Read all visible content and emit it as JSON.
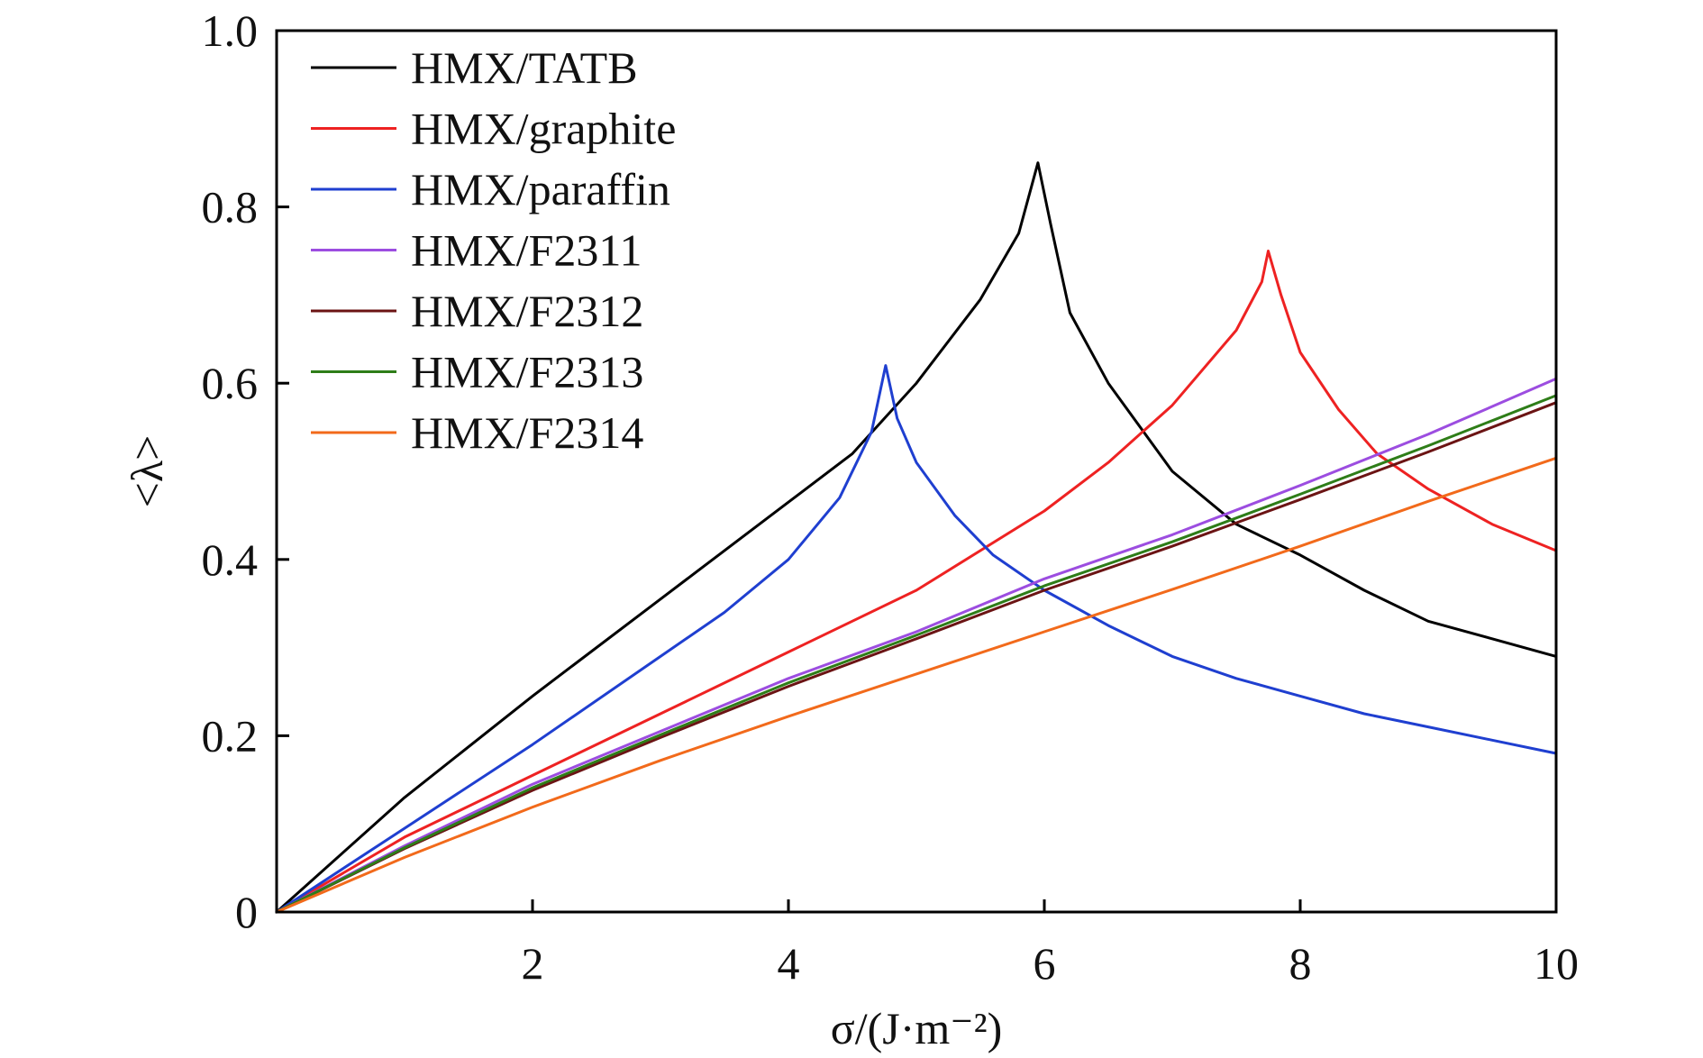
{
  "chart_data": {
    "type": "line",
    "xlabel": "σ/(J·m⁻²)",
    "ylabel": "<λ>",
    "xlim": [
      0,
      10
    ],
    "ylim": [
      0,
      1.0
    ],
    "xticks": [
      2,
      4,
      6,
      8,
      10
    ],
    "xtick_labels": [
      "2",
      "4",
      "6",
      "8",
      "10"
    ],
    "yticks": [
      0,
      0.2,
      0.4,
      0.6,
      0.8,
      1.0
    ],
    "ytick_labels": [
      "0",
      "0.2",
      "0.4",
      "0.6",
      "0.8",
      "1.0"
    ],
    "grid": false,
    "legend_position": "top-left",
    "series": [
      {
        "name": "HMX/TATB",
        "color": "#000000",
        "x": [
          0,
          1,
          2,
          3,
          4,
          4.5,
          5,
          5.5,
          5.8,
          5.95,
          6.05,
          6.2,
          6.5,
          7,
          7.5,
          8,
          8.5,
          9,
          9.5,
          10
        ],
        "y": [
          0,
          0.13,
          0.245,
          0.355,
          0.465,
          0.52,
          0.6,
          0.695,
          0.77,
          0.85,
          0.78,
          0.68,
          0.6,
          0.5,
          0.44,
          0.405,
          0.365,
          0.33,
          0.31,
          0.29
        ]
      },
      {
        "name": "HMX/graphite",
        "color": "#ee2222",
        "x": [
          0,
          1,
          2,
          3,
          4,
          5,
          6,
          6.5,
          7,
          7.5,
          7.7,
          7.75,
          7.85,
          8,
          8.3,
          8.6,
          9,
          9.5,
          10
        ],
        "y": [
          0,
          0.085,
          0.155,
          0.225,
          0.295,
          0.365,
          0.455,
          0.51,
          0.575,
          0.66,
          0.715,
          0.75,
          0.7,
          0.635,
          0.57,
          0.52,
          0.48,
          0.44,
          0.41
        ]
      },
      {
        "name": "HMX/paraffin",
        "color": "#1f3fd0",
        "x": [
          0,
          1,
          2,
          3,
          3.5,
          4,
          4.4,
          4.65,
          4.76,
          4.85,
          5,
          5.3,
          5.6,
          6,
          6.5,
          7,
          7.5,
          8,
          8.5,
          9,
          9.5,
          10
        ],
        "y": [
          0,
          0.095,
          0.19,
          0.29,
          0.34,
          0.4,
          0.47,
          0.545,
          0.62,
          0.56,
          0.51,
          0.45,
          0.405,
          0.365,
          0.325,
          0.29,
          0.265,
          0.245,
          0.225,
          0.21,
          0.195,
          0.18
        ]
      },
      {
        "name": "HMX/F2311",
        "color": "#9c4de0",
        "x": [
          0,
          1,
          2,
          3,
          4,
          5,
          6,
          7,
          8,
          9,
          10
        ],
        "y": [
          0,
          0.075,
          0.145,
          0.205,
          0.265,
          0.318,
          0.378,
          0.428,
          0.484,
          0.542,
          0.605
        ]
      },
      {
        "name": "HMX/F2312",
        "color": "#6b1414",
        "x": [
          0,
          1,
          2,
          3,
          4,
          5,
          6,
          7,
          8,
          9,
          10
        ],
        "y": [
          0,
          0.072,
          0.138,
          0.198,
          0.256,
          0.31,
          0.365,
          0.415,
          0.468,
          0.522,
          0.578
        ]
      },
      {
        "name": "HMX/F2313",
        "color": "#2e7d18",
        "x": [
          0,
          1,
          2,
          3,
          4,
          5,
          6,
          7,
          8,
          9,
          10
        ],
        "y": [
          0,
          0.073,
          0.141,
          0.201,
          0.26,
          0.314,
          0.37,
          0.42,
          0.474,
          0.529,
          0.586
        ]
      },
      {
        "name": "HMX/F2314",
        "color": "#f26a1b",
        "x": [
          0,
          1,
          2,
          3,
          4,
          5,
          6,
          7,
          8,
          9,
          10
        ],
        "y": [
          0,
          0.062,
          0.119,
          0.172,
          0.222,
          0.27,
          0.318,
          0.366,
          0.415,
          0.466,
          0.515
        ]
      }
    ]
  }
}
